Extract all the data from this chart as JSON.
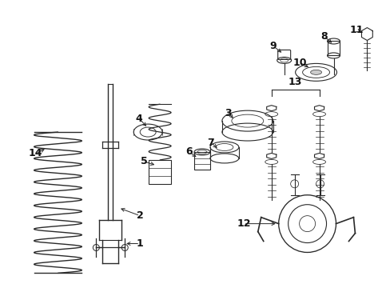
{
  "figsize": [
    4.89,
    3.6
  ],
  "dpi": 100,
  "bg_color": "#ffffff",
  "lc": "#2a2a2a",
  "lw": 0.8
}
